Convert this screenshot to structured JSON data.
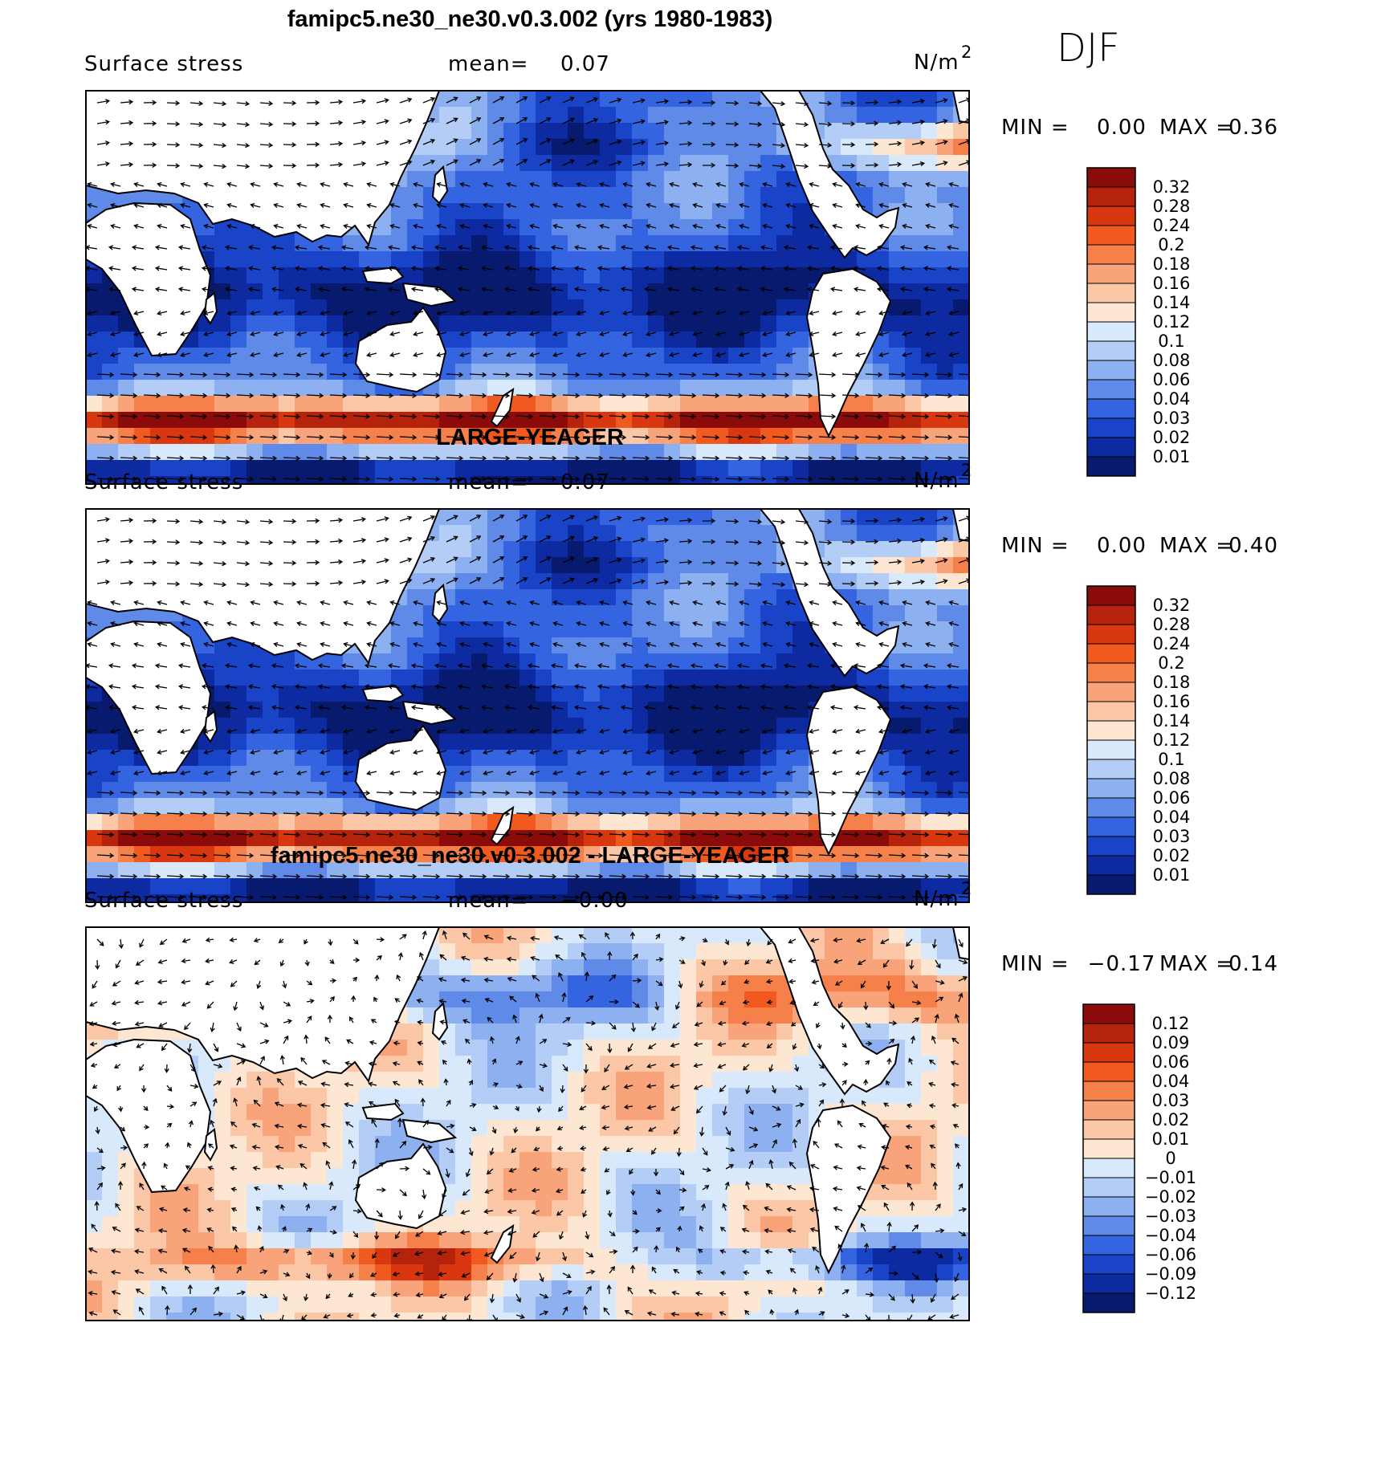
{
  "season": "DJF",
  "chart_data": [
    {
      "type": "heatmap",
      "title": "famipc5.ne30_ne30.v0.3.002 (yrs 1980-1983)",
      "variable": "Surface stress",
      "mean_label": "mean=",
      "mean": "0.07",
      "units": "N/m",
      "units_sup": "2",
      "min_label": "MIN =",
      "min": "0.00",
      "max_label": "MAX =",
      "max": "0.36",
      "colorbar_levels": [
        "0.32",
        "0.28",
        "0.24",
        "0.2",
        "0.18",
        "0.16",
        "0.14",
        "0.12",
        "0.1",
        "0.08",
        "0.06",
        "0.04",
        "0.03",
        "0.02",
        "0.01"
      ],
      "colorbar_colors": [
        "#8b0a0a",
        "#b5230c",
        "#d8370f",
        "#f05a1e",
        "#f5804a",
        "#f9a37a",
        "#fbc7a7",
        "#fde6d2",
        "#d8e9fb",
        "#b3cdf6",
        "#8db0f0",
        "#5f8ae8",
        "#3564e0",
        "#1a44c8",
        "#0e2aa0",
        "#081a6e"
      ]
    },
    {
      "type": "heatmap",
      "title": "LARGE-YEAGER",
      "variable": "Surface stress",
      "mean_label": "mean=",
      "mean": "0.07",
      "units": "N/m",
      "units_sup": "2",
      "min_label": "MIN =",
      "min": "0.00",
      "max_label": "MAX =",
      "max": "0.40",
      "colorbar_levels": [
        "0.32",
        "0.28",
        "0.24",
        "0.2",
        "0.18",
        "0.16",
        "0.14",
        "0.12",
        "0.1",
        "0.08",
        "0.06",
        "0.04",
        "0.03",
        "0.02",
        "0.01"
      ],
      "colorbar_colors": [
        "#8b0a0a",
        "#b5230c",
        "#d8370f",
        "#f05a1e",
        "#f5804a",
        "#f9a37a",
        "#fbc7a7",
        "#fde6d2",
        "#d8e9fb",
        "#b3cdf6",
        "#8db0f0",
        "#5f8ae8",
        "#3564e0",
        "#1a44c8",
        "#0e2aa0",
        "#081a6e"
      ]
    },
    {
      "type": "heatmap",
      "title": "famipc5.ne30_ne30.v0.3.002 - LARGE-YEAGER",
      "variable": "Surface stress",
      "mean_label": "mean=",
      "mean": "−0.00",
      "units": "N/m",
      "units_sup": "2",
      "min_label": "MIN =",
      "min": "−0.17",
      "max_label": "MAX =",
      "max": "0.14",
      "colorbar_levels": [
        "0.12",
        "0.09",
        "0.06",
        "0.04",
        "0.03",
        "0.02",
        "0.01",
        "0",
        "−0.01",
        "−0.02",
        "−0.03",
        "−0.04",
        "−0.06",
        "−0.09",
        "−0.12"
      ],
      "colorbar_colors": [
        "#8b0a0a",
        "#b5230c",
        "#d8370f",
        "#f05a1e",
        "#f5804a",
        "#f9a37a",
        "#fbc7a7",
        "#fde6d2",
        "#d8e9fb",
        "#b3cdf6",
        "#8db0f0",
        "#5f8ae8",
        "#3564e0",
        "#1a44c8",
        "#0e2aa0",
        "#081a6e"
      ]
    }
  ]
}
